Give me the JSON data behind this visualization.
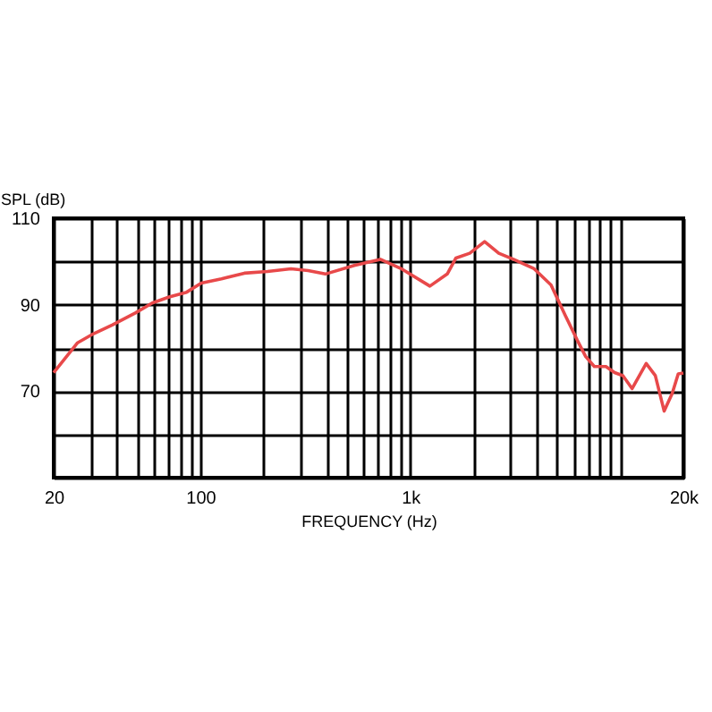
{
  "chart_data": {
    "type": "line",
    "xlabel": "FREQUENCY (Hz)",
    "ylabel": "SPL (dB)",
    "log": "x",
    "grid": true,
    "marker": "none",
    "line_style": "solid",
    "xlim": [
      20,
      20000
    ],
    "ylim": [
      50,
      110
    ],
    "xticks": [
      20,
      {
        "value": 30,
        "label": null
      },
      {
        "value": 40,
        "label": null
      },
      {
        "value": 50,
        "label": null
      },
      {
        "value": 60,
        "label": null
      },
      {
        "value": 70,
        "label": null
      },
      {
        "value": 80,
        "label": null
      },
      {
        "value": 90,
        "label": null
      },
      100,
      {
        "value": 200,
        "label": null
      },
      {
        "value": 300,
        "label": null
      },
      {
        "value": 400,
        "label": null
      },
      {
        "value": 500,
        "label": null
      },
      {
        "value": 600,
        "label": null
      },
      {
        "value": 700,
        "label": null
      },
      {
        "value": 800,
        "label": null
      },
      {
        "value": 900,
        "label": null
      },
      {
        "value": 1000,
        "label": "1k"
      },
      {
        "value": 2000,
        "label": null
      },
      {
        "value": 3000,
        "label": null
      },
      {
        "value": 4000,
        "label": null
      },
      {
        "value": 5000,
        "label": null
      },
      {
        "value": 6000,
        "label": null
      },
      {
        "value": 7000,
        "label": null
      },
      {
        "value": 8000,
        "label": null
      },
      {
        "value": 9000,
        "label": null
      },
      {
        "value": 10000,
        "label": null
      },
      {
        "value": 20000,
        "label": "20k"
      }
    ],
    "yticks": [
      {
        "value": 50,
        "label": null
      },
      {
        "value": 60,
        "label": null
      },
      70,
      {
        "value": 80,
        "label": null
      },
      90,
      {
        "value": 100,
        "label": null
      },
      110
    ],
    "x": [
      20,
      26,
      31,
      38,
      49,
      59,
      71,
      86,
      101,
      126,
      162,
      209,
      270,
      326,
      394,
      541,
      720,
      900,
      1240,
      1500,
      1650,
      1920,
      2260,
      2640,
      3100,
      3870,
      4680,
      5490,
      6230,
      6850,
      7530,
      8550,
      9400,
      10300,
      11400,
      13300,
      14700,
      16200,
      17700,
      18900,
      20000
    ],
    "series": [
      {
        "color": "#e8494a",
        "values": [
          74.3,
          81.2,
          83.3,
          85.3,
          88.1,
          90.4,
          91.8,
          92.9,
          95.0,
          96.0,
          97.3,
          97.7,
          98.3,
          97.9,
          97.1,
          99.1,
          100.5,
          98.4,
          94.3,
          97.1,
          100.8,
          101.9,
          104.6,
          101.9,
          100.5,
          98.4,
          94.6,
          87.4,
          81.9,
          78.0,
          75.7,
          75.7,
          74.3,
          73.6,
          70.6,
          76.4,
          73.6,
          65.4,
          69.5,
          74.0,
          74.2
        ]
      }
    ]
  }
}
